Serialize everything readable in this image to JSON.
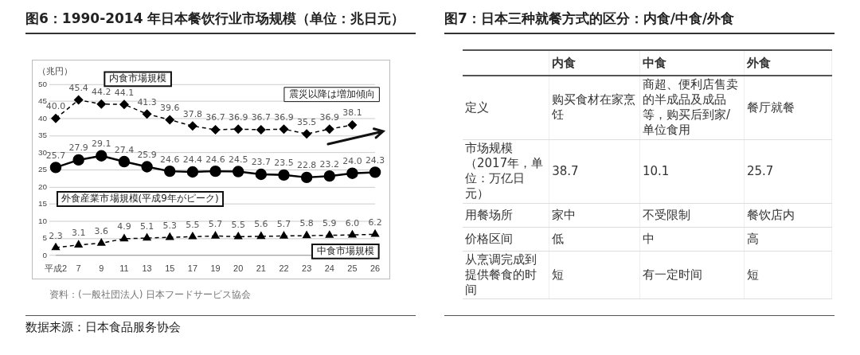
{
  "chart_data": [
    {
      "type": "line",
      "title": "图6：1990-2014 年日本餐饮行业市场规模（单位：兆日元）",
      "ylabel": "（兆円）",
      "categories": [
        "平成2",
        "7",
        "9",
        "11",
        "13",
        "15",
        "17",
        "19",
        "20",
        "21",
        "22",
        "23",
        "24",
        "25",
        "26"
      ],
      "series": [
        {
          "name": "内食市場規模",
          "color": "#000000",
          "marker": "diamond",
          "line_style": "dashed",
          "values": [
            40.0,
            45.4,
            44.2,
            44.1,
            41.3,
            39.6,
            37.8,
            36.7,
            36.9,
            36.7,
            36.9,
            35.5,
            36.9,
            38.1,
            null
          ],
          "value_labels": [
            "40.0",
            "45.4",
            "44.2",
            "44.1",
            "41.3",
            "39.6",
            "37.8",
            "36.7",
            "36.9",
            "36.7",
            "36.9",
            "35.5",
            "36.9",
            "38.1",
            null
          ]
        },
        {
          "name": "外食産業市場規模(平成9年がピーク)",
          "color": "#000000",
          "marker": "circle",
          "line_style": "solid",
          "values": [
            25.7,
            27.9,
            29.1,
            27.4,
            25.9,
            24.6,
            24.4,
            24.6,
            24.5,
            23.7,
            23.5,
            22.8,
            23.2,
            24.0,
            24.3
          ],
          "value_labels": [
            "25.7",
            "27.9",
            "29.1",
            "27.4",
            "25.9",
            "24.6",
            "24.4",
            "24.6",
            "24.5",
            "23.7",
            "23.5",
            "22.8",
            "23.2",
            "24.0",
            "24.3"
          ]
        },
        {
          "name": "中食市場規模",
          "color": "#000000",
          "marker": "triangle",
          "line_style": "dashed",
          "values": [
            2.3,
            3.1,
            3.6,
            4.9,
            5.1,
            5.3,
            5.5,
            5.7,
            5.5,
            5.6,
            5.7,
            5.8,
            5.9,
            6.0,
            6.2
          ],
          "value_labels": [
            "2.3",
            "3.1",
            "3.6",
            "4.9",
            "5.1",
            "5.3",
            "5.5",
            "5.7",
            "5.5",
            "5.6",
            "5.7",
            "5.8",
            "5.9",
            "6.0",
            "6.2"
          ]
        }
      ],
      "ylim": [
        0,
        50
      ],
      "yticks": [
        0,
        5,
        10,
        15,
        20,
        25,
        30,
        35,
        40,
        45,
        50
      ],
      "grid": "y",
      "legend": false,
      "annotations": [
        "震災以降は増加傾向",
        "资料：(一般社団法人) 日本フードサービス協会",
        "数据来源：日本食品服务协会"
      ]
    },
    {
      "type": "other",
      "title": "图7：日本三种就餐方式的区分：内食/中食/外食",
      "annotations": [
        "内食",
        "中食",
        "外食",
        "定义",
        "购买食材在家烹饪",
        "商超、便利店售卖的半成品及成品等，购买后到家/单位食用",
        "餐厅就餐",
        "市场规模（2017年，单位：万亿日元）",
        "38.7",
        "10.1",
        "25.7",
        "用餐场所",
        "家中",
        "不受限制",
        "餐饮店内",
        "价格区间",
        "低",
        "中",
        "高",
        "从烹调完成到提供餐食的时间",
        "短",
        "有一定时间",
        "短"
      ]
    }
  ]
}
